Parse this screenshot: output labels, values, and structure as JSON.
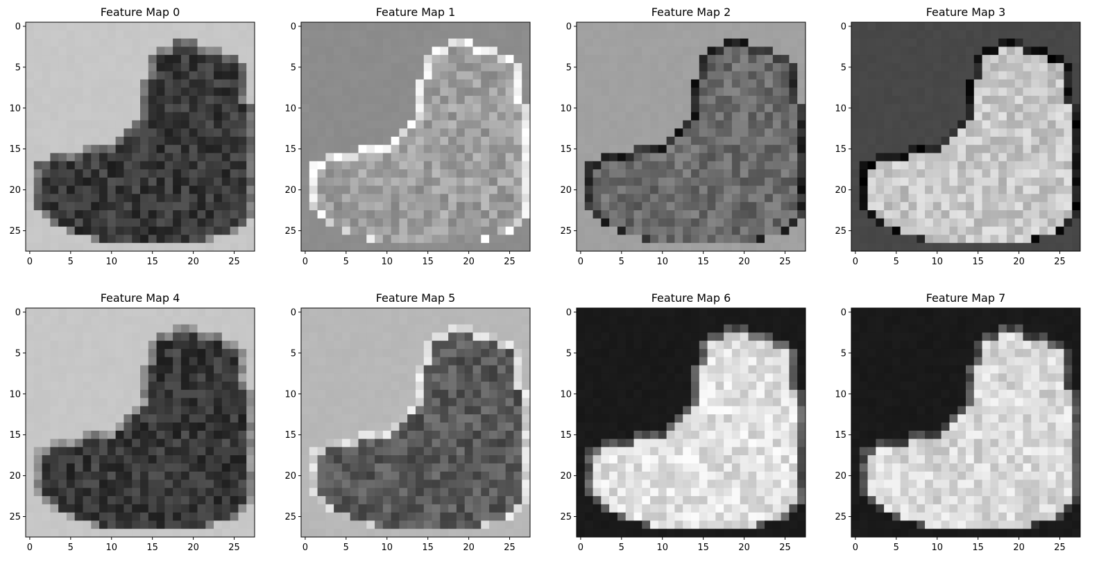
{
  "figure": {
    "background": "#ffffff",
    "colormap": "gray"
  },
  "chart_data": [
    {
      "type": "heatmap",
      "title": "Feature Map 0",
      "xlabel": "",
      "ylabel": "",
      "xlim": [
        -0.5,
        27.5
      ],
      "ylim": [
        27.5,
        -0.5
      ],
      "xticks": [
        0,
        5,
        10,
        15,
        20,
        25
      ],
      "yticks": [
        0,
        5,
        10,
        15,
        20,
        25
      ],
      "background_level": 0.78,
      "inside_level": 0.22,
      "edge_level": 0.45
    },
    {
      "type": "heatmap",
      "title": "Feature Map 1",
      "xlabel": "",
      "ylabel": "",
      "xlim": [
        -0.5,
        27.5
      ],
      "ylim": [
        27.5,
        -0.5
      ],
      "xticks": [
        0,
        5,
        10,
        15,
        20,
        25
      ],
      "yticks": [
        0,
        5,
        10,
        15,
        20,
        25
      ],
      "background_level": 0.55,
      "inside_level": 0.62,
      "edge_level": 0.92
    },
    {
      "type": "heatmap",
      "title": "Feature Map 2",
      "xlabel": "",
      "ylabel": "",
      "xlim": [
        -0.5,
        27.5
      ],
      "ylim": [
        27.5,
        -0.5
      ],
      "xticks": [
        0,
        5,
        10,
        15,
        20,
        25
      ],
      "yticks": [
        0,
        5,
        10,
        15,
        20,
        25
      ],
      "background_level": 0.63,
      "inside_level": 0.42,
      "edge_level": 0.15
    },
    {
      "type": "heatmap",
      "title": "Feature Map 3",
      "xlabel": "",
      "ylabel": "",
      "xlim": [
        -0.5,
        27.5
      ],
      "ylim": [
        27.5,
        -0.5
      ],
      "xticks": [
        0,
        5,
        10,
        15,
        20,
        25
      ],
      "yticks": [
        0,
        5,
        10,
        15,
        20,
        25
      ],
      "background_level": 0.28,
      "inside_level": 0.78,
      "edge_level": 0.1
    },
    {
      "type": "heatmap",
      "title": "Feature Map 4",
      "xlabel": "",
      "ylabel": "",
      "xlim": [
        -0.5,
        27.5
      ],
      "ylim": [
        27.5,
        -0.5
      ],
      "xticks": [
        0,
        5,
        10,
        15,
        20,
        25
      ],
      "yticks": [
        0,
        5,
        10,
        15,
        20,
        25
      ],
      "background_level": 0.78,
      "inside_level": 0.22,
      "edge_level": 0.55
    },
    {
      "type": "heatmap",
      "title": "Feature Map 5",
      "xlabel": "",
      "ylabel": "",
      "xlim": [
        -0.5,
        27.5
      ],
      "ylim": [
        27.5,
        -0.5
      ],
      "xticks": [
        0,
        5,
        10,
        15,
        20,
        25
      ],
      "yticks": [
        0,
        5,
        10,
        15,
        20,
        25
      ],
      "background_level": 0.72,
      "inside_level": 0.35,
      "edge_level": 0.85
    },
    {
      "type": "heatmap",
      "title": "Feature Map 6",
      "xlabel": "",
      "ylabel": "",
      "xlim": [
        -0.5,
        27.5
      ],
      "ylim": [
        27.5,
        -0.5
      ],
      "xticks": [
        0,
        5,
        10,
        15,
        20,
        25
      ],
      "yticks": [
        0,
        5,
        10,
        15,
        20,
        25
      ],
      "background_level": 0.1,
      "inside_level": 0.88,
      "edge_level": 0.35
    },
    {
      "type": "heatmap",
      "title": "Feature Map 7",
      "xlabel": "",
      "ylabel": "",
      "xlim": [
        -0.5,
        27.5
      ],
      "ylim": [
        27.5,
        -0.5
      ],
      "xticks": [
        0,
        5,
        10,
        15,
        20,
        25
      ],
      "yticks": [
        0,
        5,
        10,
        15,
        20,
        25
      ],
      "background_level": 0.1,
      "inside_level": 0.85,
      "edge_level": 0.3
    }
  ]
}
